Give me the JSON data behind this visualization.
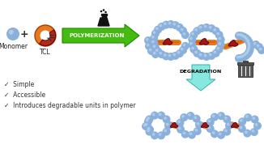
{
  "bg_color": "#ffffff",
  "monomer_color": "#8ab0dc",
  "monomer_highlight": "#c8ddf0",
  "tcl_ring_color": "#e87820",
  "tcl_inner_color": "#b02818",
  "arrow_poly_color": "#44bb11",
  "arrow_degrad_color": "#88e8e0",
  "polymer_chain_color": "#8ab0dc",
  "polymer_rod_color": "#e87820",
  "polymer_knot_color": "#a01818",
  "text_poly": "POLYMERIZATION",
  "text_degrad": "DEGRADATION",
  "text_monomer": "Monomer",
  "text_tcl": "TCL",
  "bullets": [
    "✓  Simple",
    "✓  Accessible",
    "✓  Introduces degradable units in polymer"
  ],
  "bullet_color": "#333333",
  "bullet_fontsize": 5.5,
  "label_fontsize": 5.5
}
